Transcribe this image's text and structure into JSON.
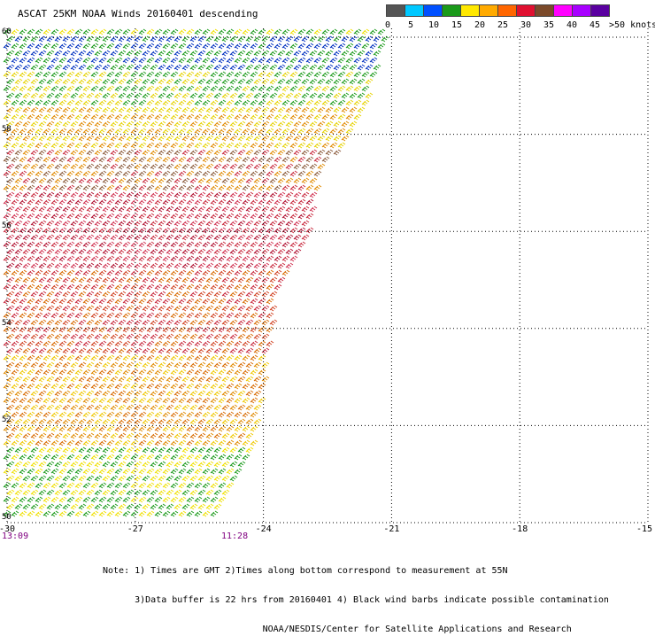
{
  "title": "ASCAT 25KM NOAA Winds 20160401 descending",
  "legend": {
    "colors": [
      "#555555",
      "#00c8ff",
      "#0050ff",
      "#1a9a1a",
      "#ffe800",
      "#ffaa00",
      "#ff6600",
      "#e01030",
      "#7b4a2a",
      "#ff00ff",
      "#a800ff",
      "#5a00a0"
    ],
    "labels": [
      "0",
      "5",
      "10",
      "15",
      "20",
      "25",
      "30",
      "35",
      "40",
      "45",
      ">50 knots"
    ]
  },
  "map": {
    "lon_ticks": [
      "-30",
      "-27",
      "-24",
      "-21",
      "-18",
      "-15"
    ],
    "lat_ticks": [
      "60",
      "58",
      "56",
      "54",
      "52",
      "50"
    ],
    "lon_range": [
      -30,
      -15
    ],
    "lat_range": [
      50,
      60
    ],
    "grid": "dotted",
    "swath_colors_by_lat": [
      {
        "lat_from": 60,
        "lat_to": 59.3,
        "colors": [
          "#0030c0",
          "#1a9a1a"
        ]
      },
      {
        "lat_from": 59.3,
        "lat_to": 58.5,
        "colors": [
          "#1a9a1a",
          "#e6d200"
        ]
      },
      {
        "lat_from": 58.5,
        "lat_to": 57.6,
        "colors": [
          "#e6d200",
          "#e08a00"
        ]
      },
      {
        "lat_from": 57.6,
        "lat_to": 56.8,
        "colors": [
          "#e08a00",
          "#c8283c",
          "#8a5a3a"
        ]
      },
      {
        "lat_from": 56.8,
        "lat_to": 55.2,
        "colors": [
          "#c8283c",
          "#b01030",
          "#d03050"
        ]
      },
      {
        "lat_from": 55.2,
        "lat_to": 53.5,
        "colors": [
          "#d04020",
          "#d86a00",
          "#c8283c"
        ]
      },
      {
        "lat_from": 53.5,
        "lat_to": 51.5,
        "colors": [
          "#e08a00",
          "#f0c800",
          "#d86a00"
        ]
      },
      {
        "lat_from": 51.5,
        "lat_to": 50.8,
        "colors": [
          "#f0e000",
          "#1a9a1a"
        ]
      },
      {
        "lat_from": 50.8,
        "lat_to": 50.0,
        "colors": [
          "#1a9a1a",
          "#f0e000"
        ]
      }
    ]
  },
  "times": {
    "left": "13:09",
    "middle": "11:28"
  },
  "notes": [
    "Note: 1) Times are GMT 2)Times along bottom correspond to measurement at 55N",
    "      3)Data buffer is 22 hrs from 20160401 4) Black wind barbs indicate possible contamination",
    "                              NOAA/NESDIS/Center for Satellite Applications and Research"
  ]
}
